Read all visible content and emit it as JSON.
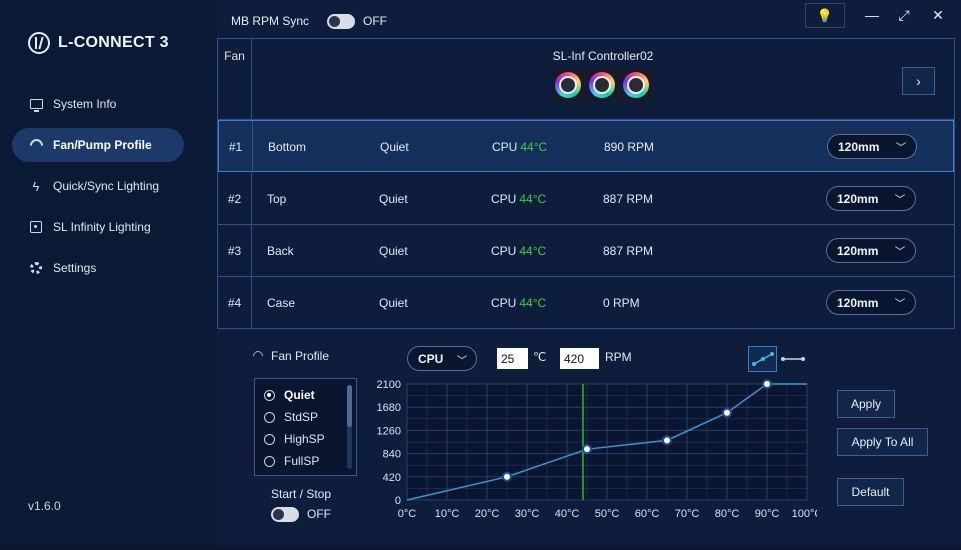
{
  "app": {
    "name": "L-CONNECT 3",
    "version": "v1.6.0"
  },
  "sidebar": {
    "items": [
      {
        "label": "System Info",
        "icon": "monitor-icon",
        "active": false
      },
      {
        "label": "Fan/Pump Profile",
        "icon": "fan-icon",
        "active": true
      },
      {
        "label": "Quick/Sync Lighting",
        "icon": "lightning-icon",
        "active": false
      },
      {
        "label": "SL Infinity Lighting",
        "icon": "sl-infinity-icon",
        "active": false
      },
      {
        "label": "Settings",
        "icon": "gear-icon",
        "active": false
      }
    ]
  },
  "topbar": {
    "mb_sync_label": "MB RPM Sync",
    "mb_sync_state": "OFF",
    "bulb_glyph": "💡",
    "minimize_glyph": "—",
    "maximize_glyph": "⤢",
    "close_glyph": "✕"
  },
  "table": {
    "fan_header": "Fan",
    "controller_name": "SL-Inf Controller02",
    "next_glyph": "›",
    "rows": [
      {
        "num": "#1",
        "name": "Bottom",
        "mode": "Quiet",
        "cpu_label": "CPU",
        "temp": "44°C",
        "rpm": "890 RPM",
        "size": "120mm",
        "selected": true
      },
      {
        "num": "#2",
        "name": "Top",
        "mode": "Quiet",
        "cpu_label": "CPU",
        "temp": "44°C",
        "rpm": "887 RPM",
        "size": "120mm",
        "selected": false
      },
      {
        "num": "#3",
        "name": "Back",
        "mode": "Quiet",
        "cpu_label": "CPU",
        "temp": "44°C",
        "rpm": "887 RPM",
        "size": "120mm",
        "selected": false
      },
      {
        "num": "#4",
        "name": "Case",
        "mode": "Quiet",
        "cpu_label": "CPU",
        "temp": "44°C",
        "rpm": "0 RPM",
        "size": "120mm",
        "selected": false
      }
    ]
  },
  "profile": {
    "title": "Fan Profile",
    "options": [
      "Quiet",
      "StdSP",
      "HighSP",
      "FullSP"
    ],
    "selected": "Quiet",
    "start_stop_label": "Start / Stop",
    "start_stop_state": "OFF",
    "source": "CPU",
    "temp_value": "25",
    "temp_unit": "℃",
    "rpm_value": "420",
    "rpm_unit": "RPM"
  },
  "buttons": {
    "apply": "Apply",
    "apply_all": "Apply To All",
    "default": "Default"
  },
  "chart_data": {
    "type": "line",
    "x": [
      0,
      25,
      45,
      65,
      80,
      90,
      100
    ],
    "y": [
      0,
      420,
      920,
      1080,
      1580,
      2100,
      2100
    ],
    "markers": [
      1,
      2,
      3,
      4,
      5
    ],
    "xlim": [
      0,
      100
    ],
    "ylim": [
      0,
      2100
    ],
    "x_ticks": [
      "0°C",
      "10°C",
      "20°C",
      "30°C",
      "40°C",
      "50°C",
      "60°C",
      "70°C",
      "80°C",
      "90°C",
      "100°C"
    ],
    "y_ticks": [
      "0",
      "420",
      "840",
      "1260",
      "1680",
      "2100"
    ],
    "current_temp": 44,
    "grid": true,
    "colors": {
      "line": "#2e9bd6",
      "current_temp_line": "#1fc22a",
      "grid": "#24406a"
    }
  }
}
